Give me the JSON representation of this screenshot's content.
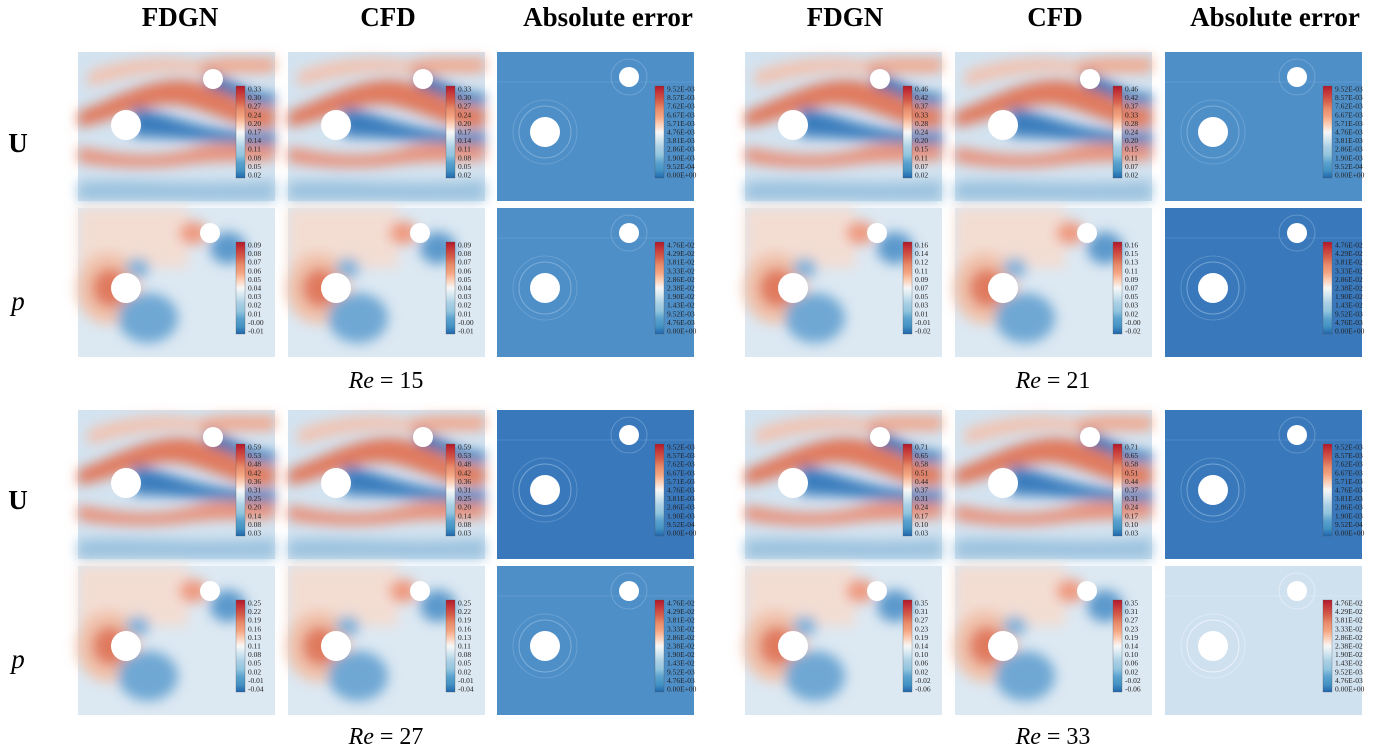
{
  "column_headers": [
    "FDGN",
    "CFD",
    "Absolute error",
    "FDGN",
    "CFD",
    "Absolute error"
  ],
  "row_labels": [
    "U",
    "p",
    "U",
    "p"
  ],
  "re_label_prefix": "Re",
  "re_values": [
    "15",
    "21",
    "27",
    "33"
  ],
  "colorbars": {
    "re15_U": [
      "0.33",
      "0.30",
      "0.27",
      "0.24",
      "0.20",
      "0.17",
      "0.14",
      "0.11",
      "0.08",
      "0.05",
      "0.02"
    ],
    "re15_p": [
      "0.09",
      "0.08",
      "0.07",
      "0.06",
      "0.05",
      "0.04",
      "0.03",
      "0.02",
      "0.01",
      "-0.00",
      "-0.01"
    ],
    "re21_U": [
      "0.46",
      "0.42",
      "0.37",
      "0.33",
      "0.28",
      "0.24",
      "0.20",
      "0.15",
      "0.11",
      "0.07",
      "0.02"
    ],
    "re21_p": [
      "0.16",
      "0.15",
      "0.13",
      "0.11",
      "0.09",
      "0.07",
      "0.05",
      "0.03",
      "0.02",
      "-0.00",
      "-0.02"
    ],
    "re21_p_fdgn": [
      "0.16",
      "0.14",
      "0.12",
      "0.11",
      "0.09",
      "0.07",
      "0.05",
      "0.03",
      "0.01",
      "-0.01",
      "-0.02"
    ],
    "re27_U": [
      "0.59",
      "0.53",
      "0.48",
      "0.42",
      "0.36",
      "0.31",
      "0.25",
      "0.20",
      "0.14",
      "0.08",
      "0.03"
    ],
    "re27_p": [
      "0.25",
      "0.22",
      "0.19",
      "0.16",
      "0.13",
      "0.11",
      "0.08",
      "0.05",
      "0.02",
      "-0.01",
      "-0.04"
    ],
    "re33_U": [
      "0.71",
      "0.65",
      "0.58",
      "0.51",
      "0.44",
      "0.37",
      "0.31",
      "0.24",
      "0.17",
      "0.10",
      "0.03"
    ],
    "re33_p": [
      "0.35",
      "0.31",
      "0.27",
      "0.23",
      "0.19",
      "0.14",
      "0.10",
      "0.06",
      "0.02",
      "-0.02",
      "-0.06"
    ],
    "err_U": [
      "9.52E-03",
      "8.57E-03",
      "7.62E-03",
      "6.67E-03",
      "5.71E-03",
      "4.76E-03",
      "3.81E-03",
      "2.86E-03",
      "1.90E-03",
      "9.52E-04",
      "0.00E+00"
    ],
    "err_p": [
      "4.76E-02",
      "4.29E-02",
      "3.81E-02",
      "3.33E-02",
      "2.86E-02",
      "2.38E-02",
      "1.90E-02",
      "1.43E-02",
      "9.52E-03",
      "4.76E-03",
      "0.00E+00"
    ]
  },
  "colors": {
    "red": "#b2182b",
    "light_red": "#f4a582",
    "white": "#f7f7f7",
    "light_blue": "#92c5de",
    "blue": "#2166ac",
    "error_bg": "#4f8fc8",
    "error_bg_dark": "#3a78bc"
  }
}
